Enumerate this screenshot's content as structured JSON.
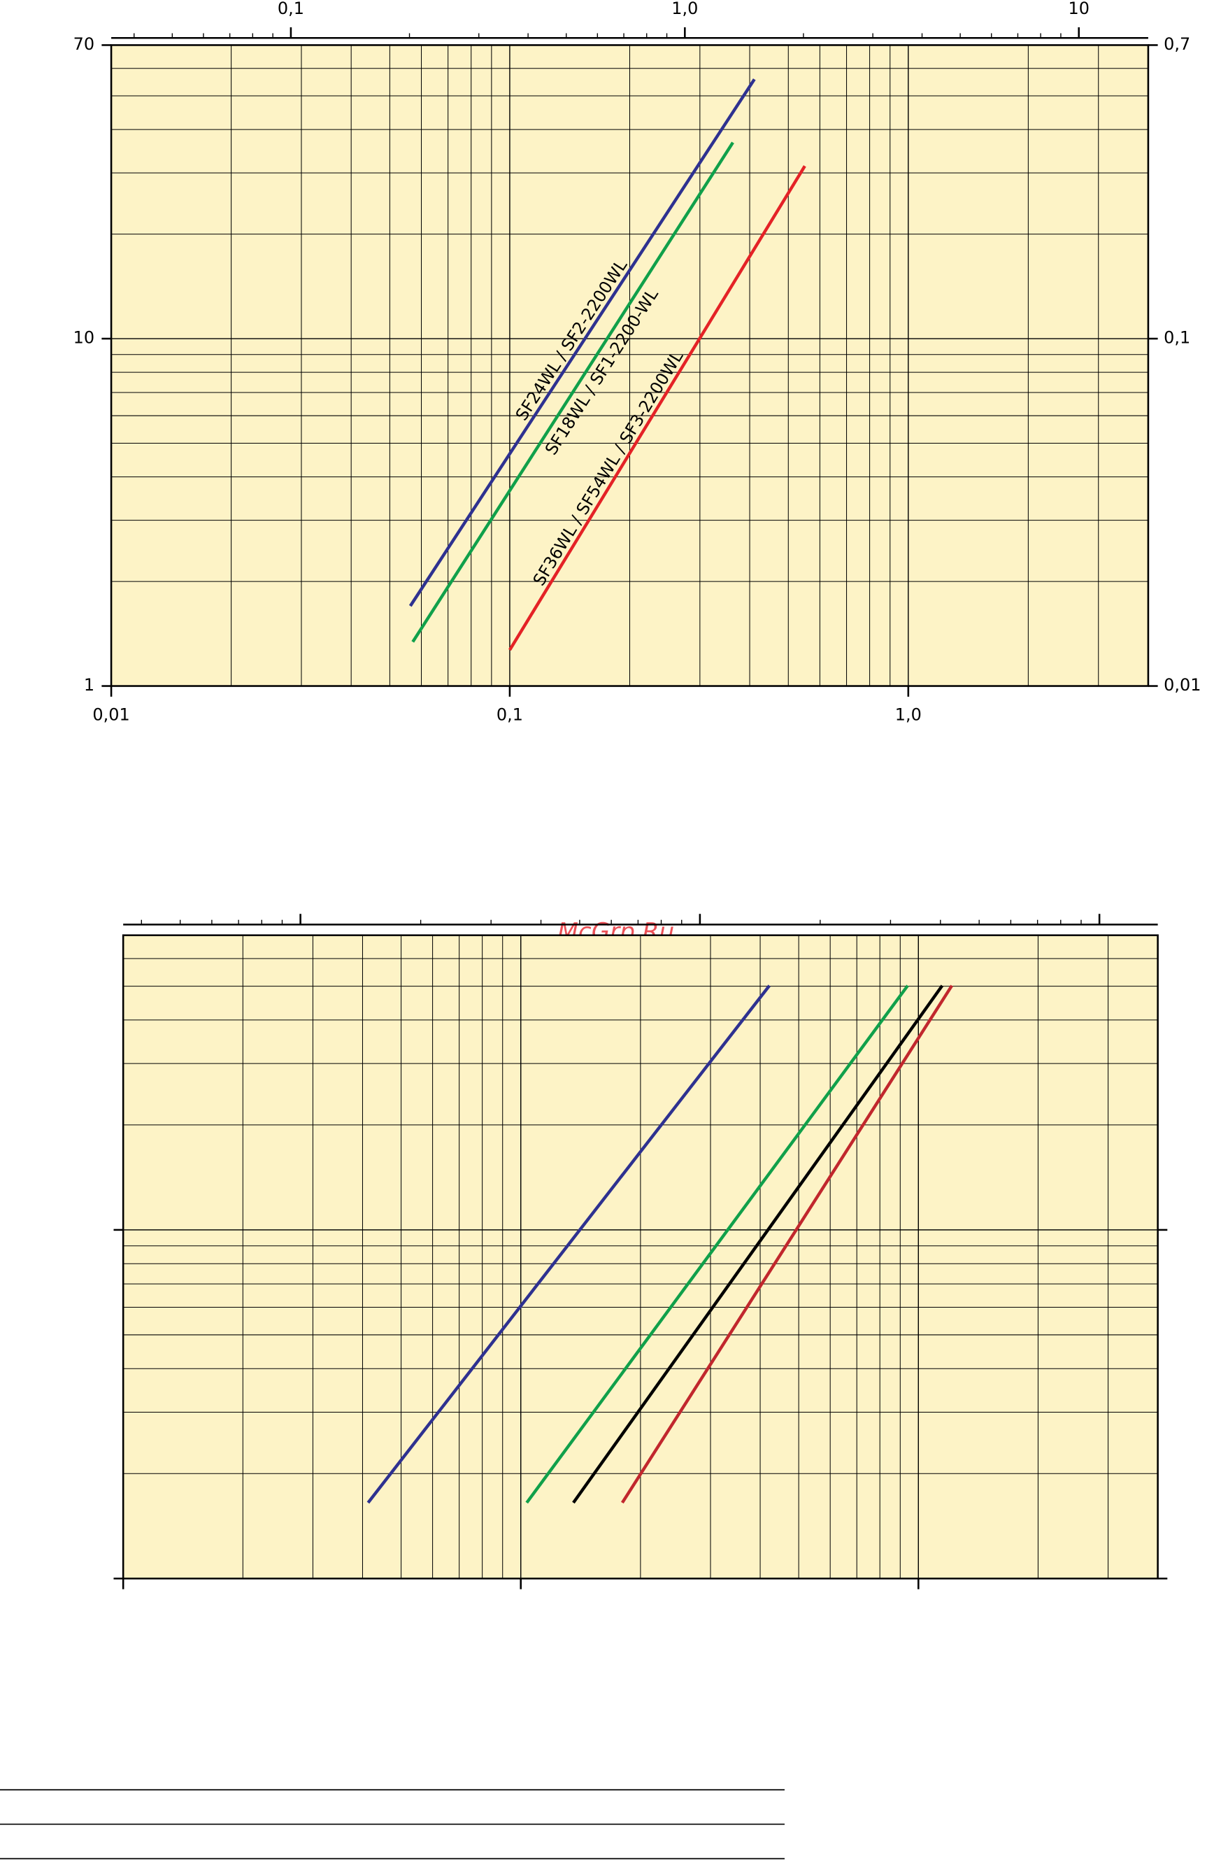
{
  "chart_data": [
    {
      "type": "line",
      "log_x": true,
      "log_y": true,
      "background": "#fdf3c6",
      "grid": true,
      "minor_grid": true,
      "xlim": [
        0.01,
        4
      ],
      "xticks": [
        {
          "value": 0.01,
          "label": "0,01"
        },
        {
          "value": 0.1,
          "label": "0,1"
        },
        {
          "value": 1,
          "label": "1,0"
        }
      ],
      "x2lim": [
        0.035,
        15
      ],
      "x2ticks": [
        {
          "value": 0.1,
          "label": "0,1"
        },
        {
          "value": 1,
          "label": "1,0"
        },
        10
      ],
      "ylim": [
        1,
        70
      ],
      "yticks": [
        1,
        10,
        70
      ],
      "y2lim": [
        0.01,
        0.7
      ],
      "y2ticks": [
        {
          "value": 0.01,
          "label": "0,01"
        },
        {
          "value": 0.1,
          "label": "0,1"
        },
        {
          "value": 0.7,
          "label": "0,7"
        }
      ],
      "series": [
        {
          "name": "SF24WL / SF2-2200WL",
          "color": "#2e3190",
          "x": [
            0.0563,
            0.411
          ],
          "values": [
            1.7,
            55.8
          ]
        },
        {
          "name": "SF18WL / SF1-2200-WL",
          "color": "#10a04a",
          "x": [
            0.0571,
            0.363
          ],
          "values": [
            1.34,
            36.7
          ]
        },
        {
          "name": "SF36WL / SF54WL / SF3-2200WL",
          "color": "#e42226",
          "x": [
            0.1,
            0.55
          ],
          "values": [
            1.27,
            31.4
          ]
        }
      ]
    },
    {
      "type": "line",
      "log_x": true,
      "log_y": true,
      "background": "#fdf3c6",
      "grid": true,
      "minor_grid": true,
      "xlim": [
        0.01,
        4
      ],
      "xticks": [
        0.01,
        0.1,
        1
      ],
      "x2lim": [
        0.036,
        14
      ],
      "x2ticks": [
        0.1,
        1,
        10
      ],
      "ylim": [
        1,
        70
      ],
      "yticks": [
        1,
        10
      ],
      "y2lim": [
        0.01,
        0.7
      ],
      "y2ticks": [
        0.01,
        0.1
      ],
      "series": [
        {
          "color": "#2e3190",
          "x": [
            0.0413,
            0.422
          ],
          "values": [
            1.65,
            50.2
          ]
        },
        {
          "color": "#10a04a",
          "x": [
            0.1035,
            0.94
          ],
          "values": [
            1.65,
            50.2
          ]
        },
        {
          "color": "#000000",
          "x": [
            0.1356,
            1.148
          ],
          "values": [
            1.65,
            50.2
          ]
        },
        {
          "color": "#c1272d",
          "x": [
            0.18,
            1.214
          ],
          "values": [
            1.65,
            50.2
          ]
        }
      ]
    }
  ],
  "watermark": "McGrp.Ru"
}
